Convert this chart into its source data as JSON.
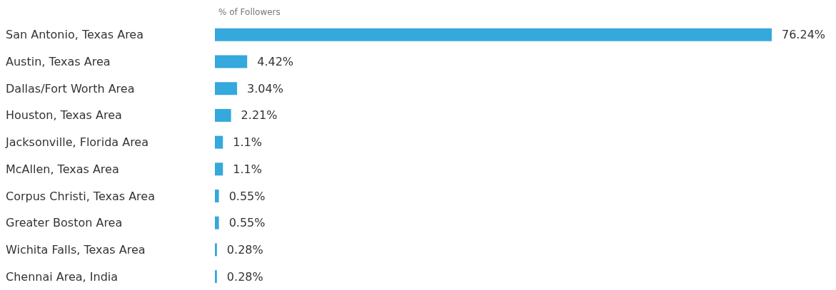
{
  "chart_data": {
    "type": "bar",
    "orientation": "horizontal",
    "xlabel": "% of Followers",
    "categories": [
      "San Antonio, Texas Area",
      "Austin, Texas Area",
      "Dallas/Fort Worth Area",
      "Houston, Texas Area",
      "Jacksonville, Florida Area",
      "McAllen, Texas Area",
      "Corpus Christi, Texas Area",
      "Greater Boston Area",
      "Wichita Falls, Texas Area",
      "Chennai Area, India"
    ],
    "values": [
      76.24,
      4.42,
      3.04,
      2.21,
      1.1,
      1.1,
      0.55,
      0.55,
      0.28,
      0.28
    ],
    "color": "#35a8dc",
    "value_labels": [
      "76.24%",
      "4.42%",
      "3.04%",
      "2.21%",
      "1.1%",
      "1.1%",
      "0.55%",
      "0.55%",
      "0.28%",
      "0.28%"
    ]
  }
}
